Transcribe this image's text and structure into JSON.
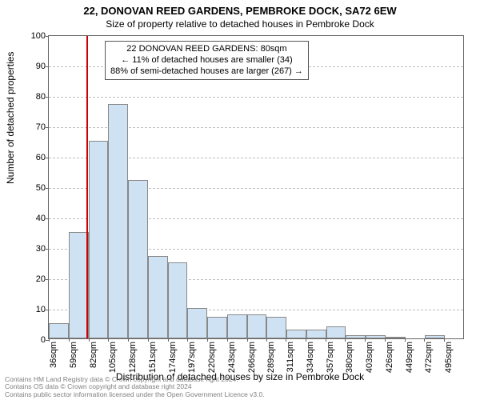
{
  "title_main": "22, DONOVAN REED GARDENS, PEMBROKE DOCK, SA72 6EW",
  "title_sub": "Size of property relative to detached houses in Pembroke Dock",
  "ylabel": "Number of detached properties",
  "xlabel": "Distribution of detached houses by size in Pembroke Dock",
  "footer_line1": "Contains HM Land Registry data © Crown copyright and database right 2024.",
  "footer_line2": "Contains OS data © Crown copyright and database right 2024",
  "footer_line3": "Contains public sector information licensed under the Open Government Licence v3.0.",
  "chart": {
    "type": "histogram",
    "ylim": [
      0,
      100
    ],
    "ytick_step": 10,
    "bar_fill": "#cfe2f3",
    "bar_border": "#888888",
    "grid_color": "#bfbfbf",
    "axis_color": "#666666",
    "background_color": "#ffffff",
    "reference_line_x": 80,
    "reference_line_color": "#cc0000",
    "xticks": [
      36,
      59,
      82,
      105,
      128,
      151,
      174,
      197,
      220,
      243,
      266,
      289,
      311,
      334,
      357,
      380,
      403,
      426,
      449,
      472,
      495
    ],
    "xtick_suffix": "sqm",
    "bin_width": 23,
    "bins_start": 36,
    "values": [
      5,
      35,
      65,
      77,
      52,
      27,
      25,
      10,
      7,
      8,
      8,
      7,
      3,
      3,
      4,
      1,
      1,
      0.5,
      0,
      1,
      0
    ],
    "annotation": {
      "line1": "22 DONOVAN REED GARDENS: 80sqm",
      "line2": "← 11% of detached houses are smaller (34)",
      "line3": "88% of semi-detached houses are larger (267) →"
    }
  }
}
